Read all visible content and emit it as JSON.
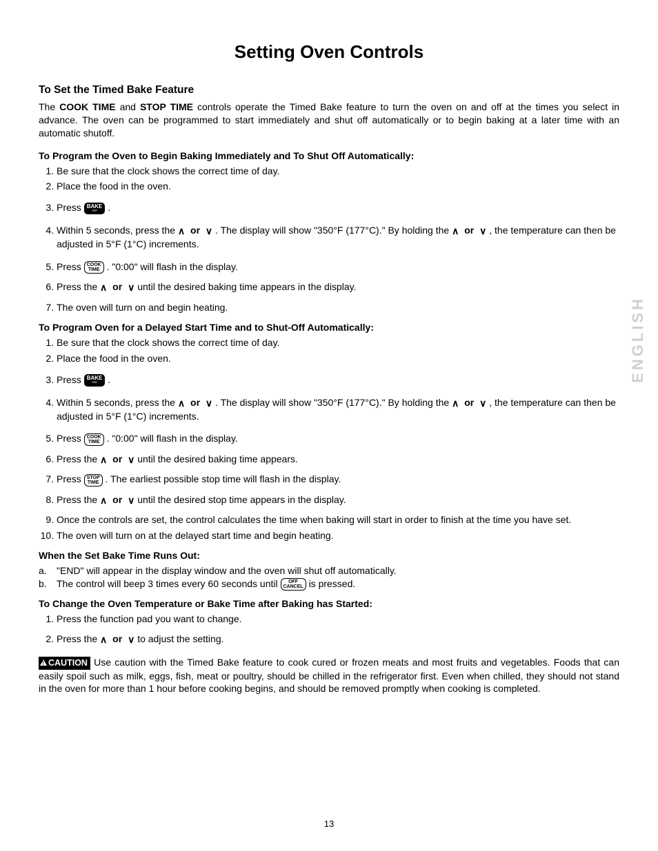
{
  "page_number": "13",
  "side_label": "ENGLISH",
  "title": "Setting Oven Controls",
  "section_heading": "To Set the Timed Bake Feature",
  "intro_parts": {
    "p1_a": "The ",
    "p1_b": "COOK TIME",
    "p1_c": " and ",
    "p1_d": "STOP TIME",
    "p1_e": " controls operate the Timed Bake feature to turn the oven on and off at the times you select in advance. The oven can be programmed to start immediately and shut off automatically or to begin baking at a later time with an automatic shutoff."
  },
  "buttons": {
    "bake": "BAKE",
    "cook_time_l1": "COOK",
    "cook_time_l2": "TIME",
    "stop_time_l1": "STOP",
    "stop_time_l2": "TIME",
    "off_cancel_l1": "OFF",
    "off_cancel_l2": "CANCEL"
  },
  "chev_up": "∧",
  "chev_down": "∨",
  "or": "or",
  "subA_heading": "To Program the Oven to Begin Baking Immediately and To Shut Off Automatically:",
  "subA_steps": {
    "s1": "Be sure that the clock shows the correct time of day.",
    "s2": "Place the food in the oven.",
    "s3a": "Press ",
    "s3b": " .",
    "s4a": "Within 5 seconds, press the ",
    "s4b": " . The display will show \"350°F (177°C).\" By holding the ",
    "s4c": " , the temperature can then be adjusted in 5°F (1°C) increments.",
    "s5a": "Press ",
    "s5b": ". \"0:00\" will flash in the display.",
    "s6a": "Press the ",
    "s6b": " until the desired baking time appears in the display.",
    "s7": "The oven will turn on and begin heating."
  },
  "subB_heading": "To Program Oven for a Delayed Start Time and to Shut-Off Automatically:",
  "subB_steps": {
    "s1": "Be sure that the clock shows the correct time of day.",
    "s2": "Place the food in the oven.",
    "s3a": "Press ",
    "s3b": " .",
    "s4a": "Within 5 seconds, press the ",
    "s4b": " . The display will show \"350°F (177°C).\" By holding the ",
    "s4c": " , the temperature can then be adjusted in 5°F (1°C) increments.",
    "s5a": "Press ",
    "s5b": ". \"0:00\" will flash in the display.",
    "s6a": "Press the ",
    "s6b": " until the desired baking time appears.",
    "s7a": "Press ",
    "s7b": ". The earliest possible stop time will flash in the display.",
    "s8a": "Press the ",
    "s8b": " until the desired stop time appears in the display.",
    "s9": "Once the controls are set, the control calculates the time when baking will start in order to finish at the time you have set.",
    "s10": "The oven will turn on at the delayed start time and begin heating."
  },
  "runout_heading": "When the Set Bake Time Runs Out:",
  "runout": {
    "a": "\"END\" will appear in the display window and the oven will shut off automatically.",
    "b_a": "The control will beep 3 times every 60 seconds until ",
    "b_b": " is pressed."
  },
  "change_heading": "To Change the Oven Temperature or Bake Time after Baking has Started:",
  "change": {
    "s1": "Press the function pad you want to change.",
    "s2a": "Press the ",
    "s2b": " to adjust the setting."
  },
  "caution_label": "CAUTION",
  "caution_text": " Use caution with the Timed Bake feature to cook cured or frozen meats and most fruits and vegetables. Foods that can easily spoil such as milk, eggs, fish, meat or poultry, should be chilled in the refrigerator first. Even when chilled, they should not stand in the oven for more than 1 hour before cooking begins, and should be removed promptly when cooking is completed."
}
